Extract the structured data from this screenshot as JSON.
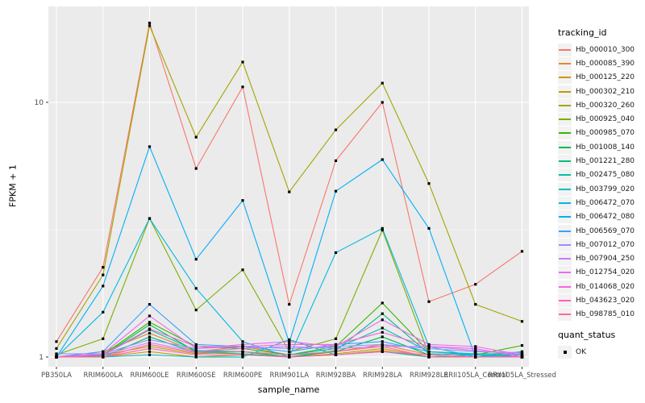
{
  "chart_data": {
    "type": "line",
    "title": "",
    "xlabel": "sample_name",
    "ylabel": "FPKM + 1",
    "y_scale": "log10",
    "ylim": [
      0.916,
      23.8
    ],
    "y_ticks": [
      {
        "value": 1,
        "label": "1"
      },
      {
        "value": 10,
        "label": "10"
      }
    ],
    "y_minor_ticks": [
      3.162
    ],
    "grid": "on",
    "legend_position": "right",
    "point_marker": "black-square",
    "categories": [
      "PB350LA",
      "RRIM600LA",
      "RRIM600LE",
      "RRIM600SE",
      "RRIM600PE",
      "RRIM901LA",
      "RRIM928BA",
      "RRIM928LA",
      "RRIM928LE",
      "RRII105LA_Control",
      "RRII105LA_Stressed"
    ],
    "series": [
      {
        "name": "Hb_000010_300",
        "color": "#F8766D",
        "values": [
          1.15,
          2.25,
          20.5,
          5.5,
          11.5,
          1.61,
          5.9,
          10.0,
          1.65,
          1.93,
          2.6
        ]
      },
      {
        "name": "Hb_000085_390",
        "color": "#EA8331",
        "values": [
          1.0,
          1.05,
          1.24,
          1.05,
          1.1,
          1.02,
          1.05,
          1.12,
          1.02,
          1.0,
          1.0
        ]
      },
      {
        "name": "Hb_000125_220",
        "color": "#D89000",
        "values": [
          1.0,
          1.0,
          1.05,
          1.0,
          1.02,
          1.0,
          1.02,
          1.06,
          1.0,
          1.0,
          1.0
        ]
      },
      {
        "name": "Hb_000302_210",
        "color": "#C09B00",
        "values": [
          1.0,
          1.02,
          1.1,
          1.03,
          1.05,
          1.0,
          1.03,
          1.08,
          1.0,
          1.0,
          1.0
        ]
      },
      {
        "name": "Hb_000320_260",
        "color": "#A3A500",
        "values": [
          1.08,
          2.1,
          20.0,
          7.3,
          14.4,
          4.45,
          7.8,
          11.9,
          4.8,
          1.61,
          1.38
        ]
      },
      {
        "name": "Hb_000925_040",
        "color": "#7CAE00",
        "values": [
          1.02,
          1.18,
          3.5,
          1.53,
          2.2,
          1.05,
          1.18,
          3.15,
          1.02,
          1.0,
          1.0
        ]
      },
      {
        "name": "Hb_000985_070",
        "color": "#39B600",
        "values": [
          1.0,
          1.02,
          1.37,
          1.1,
          1.08,
          1.02,
          1.1,
          1.63,
          1.05,
          1.02,
          1.11
        ]
      },
      {
        "name": "Hb_001008_140",
        "color": "#00BB4E",
        "values": [
          1.0,
          1.01,
          1.34,
          1.05,
          1.05,
          1.0,
          1.05,
          1.2,
          1.02,
          1.0,
          1.05
        ]
      },
      {
        "name": "Hb_001221_280",
        "color": "#00BF7D",
        "values": [
          1.0,
          1.0,
          1.2,
          1.04,
          1.03,
          1.0,
          1.06,
          1.48,
          1.03,
          1.02,
          1.02
        ]
      },
      {
        "name": "Hb_002475_080",
        "color": "#00C1A3",
        "values": [
          1.0,
          1.02,
          1.28,
          1.06,
          1.05,
          1.02,
          1.08,
          1.3,
          1.05,
          1.03,
          1.03
        ]
      },
      {
        "name": "Hb_003799_020",
        "color": "#00BFC4",
        "values": [
          1.0,
          1.0,
          1.02,
          1.0,
          1.0,
          1.17,
          1.02,
          1.05,
          1.0,
          1.02,
          1.0
        ]
      },
      {
        "name": "Hb_006472_070",
        "color": "#00BAE0",
        "values": [
          1.0,
          1.5,
          3.5,
          1.86,
          1.15,
          1.0,
          2.57,
          3.2,
          1.1,
          1.0,
          1.0
        ]
      },
      {
        "name": "Hb_006472_080",
        "color": "#00B0F6",
        "values": [
          1.0,
          1.9,
          6.7,
          2.42,
          4.12,
          1.14,
          4.48,
          5.96,
          3.2,
          1.0,
          1.02
        ]
      },
      {
        "name": "Hb_006569_070",
        "color": "#35A2FF",
        "values": [
          1.0,
          1.05,
          1.61,
          1.12,
          1.1,
          1.05,
          1.12,
          1.15,
          1.05,
          1.02,
          1.0
        ]
      },
      {
        "name": "Hb_007012_070",
        "color": "#9590FF",
        "values": [
          1.03,
          1.03,
          1.17,
          1.08,
          1.1,
          1.08,
          1.1,
          1.12,
          1.08,
          1.05,
          1.04
        ]
      },
      {
        "name": "Hb_007904_250",
        "color": "#C77CFF",
        "values": [
          1.0,
          1.02,
          1.14,
          1.05,
          1.08,
          1.1,
          1.08,
          1.1,
          1.1,
          1.06,
          1.02
        ]
      },
      {
        "name": "Hb_012754_020",
        "color": "#E76BF3",
        "values": [
          1.0,
          1.03,
          1.45,
          1.08,
          1.12,
          1.15,
          1.1,
          1.4,
          1.12,
          1.1,
          1.02
        ]
      },
      {
        "name": "Hb_014068_020",
        "color": "#FA62DB",
        "values": [
          1.0,
          1.02,
          1.29,
          1.1,
          1.1,
          1.12,
          1.12,
          1.25,
          1.1,
          1.08,
          1.0
        ]
      },
      {
        "name": "Hb_043623_020",
        "color": "#FF62BC",
        "values": [
          1.0,
          1.0,
          1.08,
          1.02,
          1.02,
          1.0,
          1.02,
          1.05,
          1.02,
          1.0,
          1.0
        ]
      },
      {
        "name": "Hb_098785_010",
        "color": "#FF6A98",
        "values": [
          1.0,
          1.0,
          1.12,
          1.04,
          1.05,
          1.02,
          1.05,
          1.1,
          1.0,
          1.0,
          1.0
        ]
      }
    ]
  },
  "legend": {
    "tracking_title": "tracking_id",
    "quant_title": "quant_status",
    "quant_items": [
      {
        "label": "OK",
        "marker": "black-square"
      }
    ]
  },
  "colors": {
    "panel_bg": "#EBEBEB",
    "grid": "#FFFFFF",
    "axis_text": "#4D4D4D",
    "tick": "#333333",
    "point": "#000000",
    "legend_key_bg": "#F2F2F2"
  }
}
